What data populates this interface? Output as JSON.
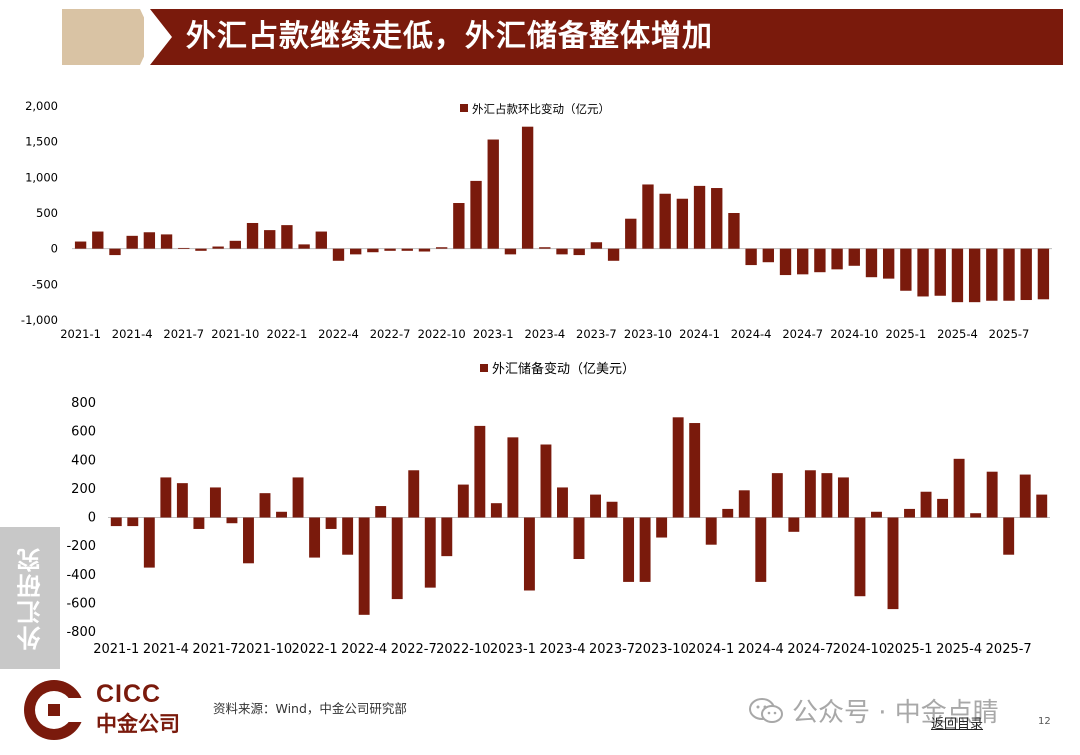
{
  "header": {
    "title": "外汇占款继续走低，外汇储备整体增加"
  },
  "side_tab": {
    "label": "外汇研究"
  },
  "footer": {
    "logo_en": "CICC",
    "logo_cn": "中金公司",
    "source": "资料来源：Wind，中金公司研究部",
    "watermark": "公众号 · 中金点睛",
    "back_link": "返回目录",
    "page_number": "12"
  },
  "colors": {
    "bar": "#7a1a0c",
    "header_bar": "#7a1a0c",
    "header_accent": "#d9c3a4"
  },
  "chart_data": [
    {
      "type": "bar",
      "series": [
        {
          "name": "外汇占款环比变动（亿元）",
          "values": [
            100,
            240,
            -90,
            180,
            230,
            200,
            10,
            -30,
            30,
            110,
            360,
            260,
            330,
            60,
            240,
            -170,
            -80,
            -50,
            -30,
            -30,
            -40,
            20,
            640,
            950,
            1530,
            -80,
            1710,
            20,
            -80,
            -90,
            90,
            -170,
            420,
            900,
            770,
            700,
            880,
            850,
            500,
            -230,
            -190,
            -370,
            -360,
            -330,
            -290,
            -240,
            -400,
            -420,
            -590,
            -670,
            -660,
            -750,
            -750,
            -730,
            -730,
            -720,
            -710
          ]
        }
      ],
      "xticks": [
        "2021-1",
        "2021-4",
        "2021-7",
        "2021-10",
        "2022-1",
        "2022-4",
        "2022-7",
        "2022-10",
        "2023-1",
        "2023-4",
        "2023-7",
        "2023-10",
        "2024-1",
        "2024-4",
        "2024-7",
        "2024-10",
        "2025-1",
        "2025-4",
        "2025-7"
      ],
      "yticks": [
        "2,000",
        "1,500",
        "1,000",
        "500",
        "0",
        "-500",
        "-1,000"
      ],
      "ylim": [
        -1000,
        2000
      ],
      "legend": "top-center"
    },
    {
      "type": "bar",
      "series": [
        {
          "name": "外汇储备变动（亿美元）",
          "values": [
            -60,
            -60,
            -350,
            280,
            240,
            -80,
            210,
            -40,
            -320,
            170,
            40,
            280,
            -280,
            -80,
            -260,
            -680,
            80,
            -570,
            330,
            -490,
            -270,
            230,
            640,
            100,
            560,
            -510,
            510,
            210,
            -290,
            160,
            110,
            -450,
            -450,
            -140,
            700,
            660,
            -190,
            60,
            190,
            -450,
            310,
            -100,
            330,
            310,
            280,
            -550,
            40,
            -640,
            60,
            180,
            130,
            410,
            30,
            320,
            -260,
            300,
            160
          ]
        }
      ],
      "xticks": [
        "2021-1",
        "2021-4",
        "2021-7",
        "2021-10",
        "2022-1",
        "2022-4",
        "2022-7",
        "2022-10",
        "2023-1",
        "2023-4",
        "2023-7",
        "2023-10",
        "2024-1",
        "2024-4",
        "2024-7",
        "2024-10",
        "2025-1",
        "2025-4",
        "2025-7"
      ],
      "yticks": [
        "800",
        "600",
        "400",
        "200",
        "0",
        "-200",
        "-400",
        "-600",
        "-800"
      ],
      "ylim": [
        -800,
        800
      ],
      "legend": "top-center"
    }
  ]
}
